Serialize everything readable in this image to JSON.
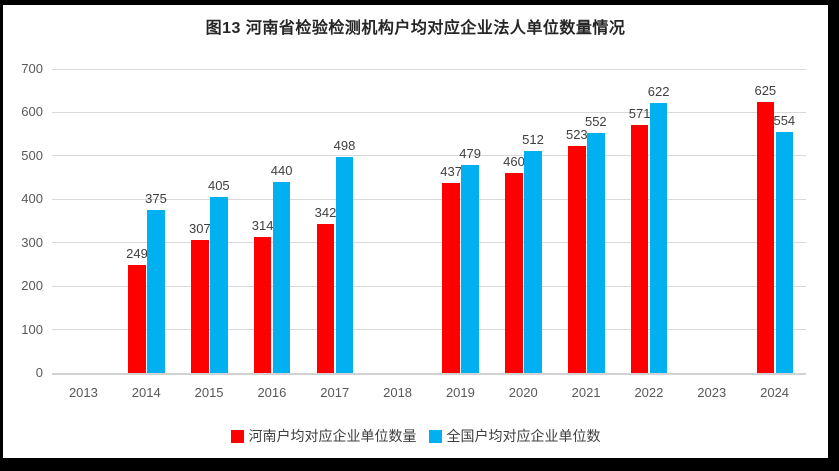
{
  "frame": {
    "color": "#000000",
    "chart_background": "#ffffff"
  },
  "chart_data": {
    "type": "bar",
    "title": "图13 河南省检验检测机构户均对应企业法人单位数量情况",
    "categories": [
      "2013",
      "2014",
      "2015",
      "2016",
      "2017",
      "2018",
      "2019",
      "2020",
      "2021",
      "2022",
      "2023",
      "2024"
    ],
    "series": [
      {
        "key": "henan",
        "name": "河南户均对应企业单位数量",
        "color": "#ff0000",
        "values": [
          null,
          249,
          307,
          314,
          342,
          null,
          437,
          460,
          523,
          571,
          null,
          625
        ]
      },
      {
        "key": "national",
        "name": "全国户均对应企业单位数",
        "color": "#00b0f0",
        "values": [
          null,
          375,
          405,
          440,
          498,
          null,
          479,
          512,
          552,
          622,
          null,
          554
        ]
      }
    ],
    "xlabel": "",
    "ylabel": "",
    "ylim": [
      0,
      700
    ],
    "yticks": [
      0,
      100,
      200,
      300,
      400,
      500,
      600,
      700
    ],
    "grid": "horizontal",
    "legend_position": "bottom",
    "data_labels": true,
    "colors": {
      "gridline": "#d9d9d9",
      "axis_line": "#d2d2d2",
      "tick_label": "#595959",
      "data_label": "#404040",
      "title": "#262626"
    }
  }
}
